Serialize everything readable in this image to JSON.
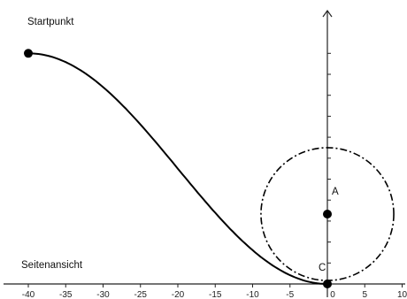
{
  "labels": {
    "start": "Startpunkt",
    "side_view": "Seitenansicht",
    "point_a": "A",
    "point_c": "C"
  },
  "x_axis": {
    "ticks": [
      -40,
      -35,
      -30,
      -25,
      -20,
      -15,
      -10,
      -5,
      0,
      5,
      10
    ],
    "tick_labels": [
      "-40",
      "-35",
      "-30",
      "-25",
      "-20",
      "-15",
      "-10",
      "-5",
      "0",
      "5",
      "10"
    ],
    "range": [
      -42,
      10.5
    ]
  },
  "y_axis": {
    "minor_ticks": [
      3,
      6,
      9,
      12,
      15,
      18,
      21,
      24,
      27,
      30,
      33
    ],
    "range": [
      0,
      36
    ]
  },
  "points": {
    "start": {
      "x": -40,
      "y": 33
    },
    "a": {
      "x": 0,
      "y": 10
    },
    "c": {
      "x": 0,
      "y": 0
    }
  },
  "circle": {
    "center_x": 0,
    "center_y": 10,
    "radius": 10
  },
  "colors": {
    "ink": "#000000",
    "axis": "#222222"
  }
}
